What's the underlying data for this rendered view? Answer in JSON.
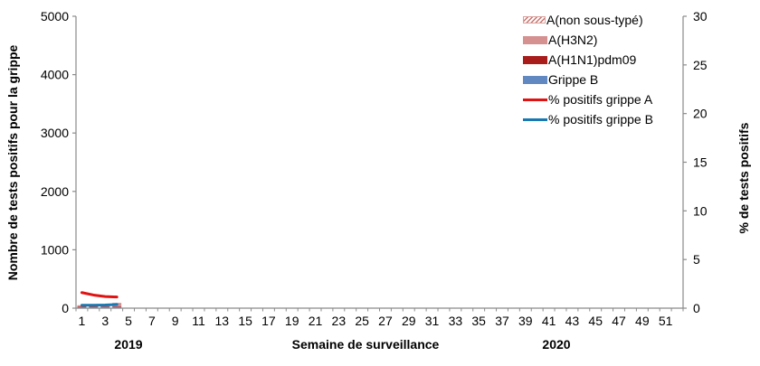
{
  "chart_data": {
    "type": "bar",
    "subtype": "stacked-bars-with-percent-line-overlay-dual-axis",
    "background": "#ffffff",
    "axis_color": "#8a8a8a",
    "text_color": "#000000",
    "grid": "off",
    "legend_position": "top-center-right",
    "x_axis": {
      "title": "Semaine de surveillance",
      "weeks_total": 52,
      "tick_labels": [
        "1",
        "3",
        "5",
        "7",
        "9",
        "11",
        "13",
        "15",
        "17",
        "19",
        "21",
        "23",
        "25",
        "27",
        "29",
        "31",
        "33",
        "35",
        "37",
        "39",
        "41",
        "43",
        "45",
        "47",
        "49",
        "51"
      ],
      "year_left": "2019",
      "year_right": "2020"
    },
    "left_axis": {
      "title": "Nombre de tests positifs pour la grippe",
      "min": 0,
      "max": 5000,
      "tick_labels": [
        "0",
        "1000",
        "2000",
        "3000",
        "4000",
        "5000"
      ]
    },
    "right_axis": {
      "title": "% de tests positifs",
      "min": 0,
      "max": 30,
      "tick_labels": [
        "0",
        "5",
        "10",
        "15",
        "20",
        "25",
        "30"
      ]
    },
    "bar_series": [
      {
        "name": "A(non sous-typé)",
        "swatch": "hatched",
        "color": "#c8736e",
        "border": "#d9a09c",
        "weeks": [
          1,
          2,
          3,
          4
        ],
        "values": [
          0,
          0,
          0,
          0
        ]
      },
      {
        "name": "A(H3N2)",
        "swatch": "solid",
        "color": "#d59090",
        "weeks": [
          1,
          2,
          3,
          4
        ],
        "values": [
          25,
          30,
          40,
          60
        ]
      },
      {
        "name": "A(H1N1)pdm09",
        "swatch": "solid",
        "color": "#a81c1c",
        "weeks": [
          1,
          2,
          3,
          4
        ],
        "values": [
          10,
          10,
          10,
          10
        ]
      },
      {
        "name": "Grippe B",
        "swatch": "solid",
        "color": "#6288c2",
        "weeks": [
          1,
          2,
          3,
          4
        ],
        "values": [
          15,
          15,
          20,
          20
        ]
      }
    ],
    "line_series": [
      {
        "name": "% positifs grippe A",
        "color": "#e11212",
        "weeks": [
          1,
          2,
          3,
          4
        ],
        "values": [
          1.6,
          1.35,
          1.2,
          1.15
        ]
      },
      {
        "name": "% positifs grippe B",
        "color": "#1878b2",
        "weeks": [
          1,
          2,
          3,
          4
        ],
        "values": [
          0.3,
          0.3,
          0.32,
          0.38
        ]
      }
    ]
  }
}
